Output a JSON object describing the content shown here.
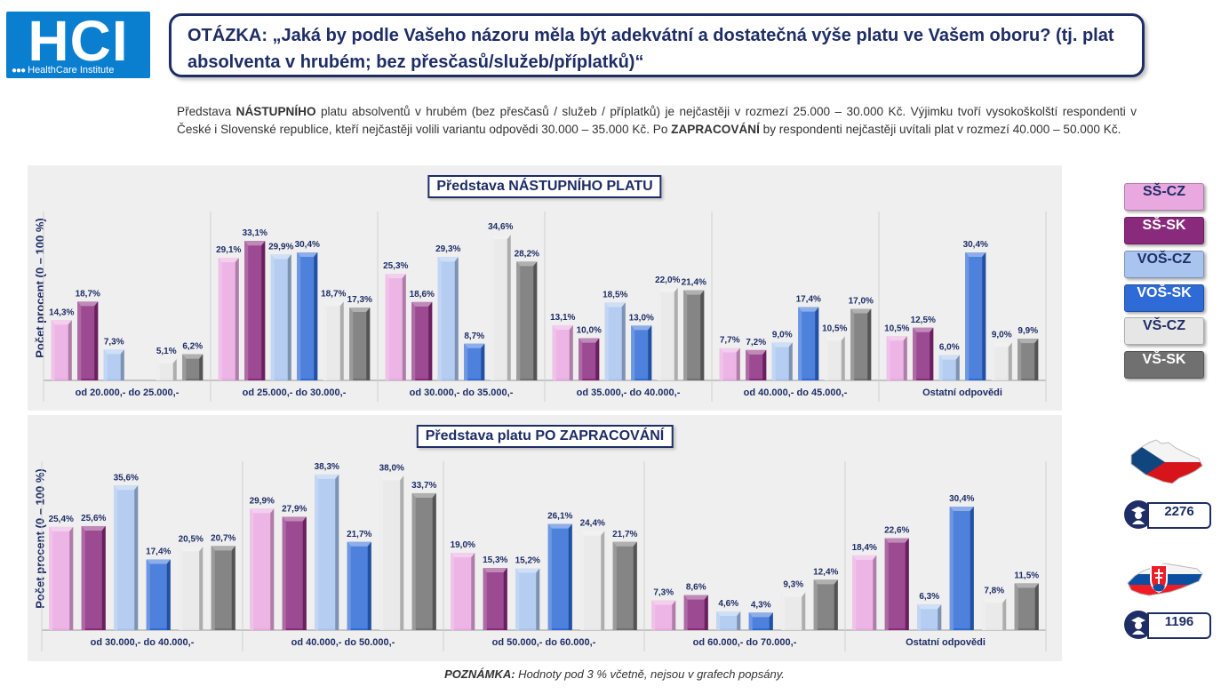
{
  "logo": {
    "main": "HCI",
    "dots": "●●●",
    "sub": "HealthCare Institute"
  },
  "question": "OTÁZKA: „Jaká by podle Vašeho názoru měla být adekvátní a dostatečná výše platu ve Vašem oboru? (tj. plat absolventa v hrubém; bez přesčasů/služeb/příplatků)“",
  "intro": {
    "p1": "Představa ",
    "b1": "NÁSTUPNÍHO",
    "p2": " platu absolventů v hrubém (bez přesčasů / služeb / příplatků) je nejčastěji v rozmezí 25.000 – 30.000 Kč. Výjimku tvoří vysokoškolští respondenti v České i Slovenské republice, kteří nejčastěji volili variantu odpovědi 30.000 – 35.000 Kč. Po ",
    "b2": "ZAPRACOVÁNÍ",
    "p3": " by respondenti nejčastěji uvítali plat v rozmezí 40.000 – 50.000 Kč."
  },
  "legend": [
    {
      "label": "SŠ-CZ",
      "bg": "#e9a8e0",
      "fg": "#1e2d66"
    },
    {
      "label": "SŠ-SK",
      "bg": "#8a2a7d",
      "fg": "#ffffff"
    },
    {
      "label": "VOŠ-CZ",
      "bg": "#a8c4ef",
      "fg": "#1e2d66"
    },
    {
      "label": "VOŠ-SK",
      "bg": "#2f6bd6",
      "fg": "#ffffff"
    },
    {
      "label": "VŠ-CZ",
      "bg": "#e6e6e6",
      "fg": "#1e2d66"
    },
    {
      "label": "VŠ-SK",
      "bg": "#707070",
      "fg": "#ffffff"
    }
  ],
  "counts": {
    "cz": "2276",
    "sk": "1196"
  },
  "note": {
    "bold": "POZNÁMKA:",
    "text": " Hodnoty pod 3 % včetně, nejsou v grafech popsány."
  },
  "chart_data": [
    {
      "type": "bar",
      "title": "Představa NÁSTUPNÍHO PLATU",
      "ylabel": "Počet procent  (0 – 100 %)",
      "categories": [
        "od 20.000,- do 25.000,-",
        "od 25.000,- do 30.000,-",
        "od 30.000,- do 35.000,-",
        "od 35.000,- do 40.000,-",
        "od 40.000,- do 45.000,-",
        "Ostatní odpovědi"
      ],
      "series": [
        {
          "name": "SŠ-CZ",
          "color": "#e9a8e0",
          "values": [
            14.3,
            29.1,
            25.3,
            13.1,
            7.7,
            10.5
          ]
        },
        {
          "name": "SŠ-SK",
          "color": "#8a2a7d",
          "values": [
            18.7,
            33.1,
            18.6,
            10.0,
            7.2,
            12.5
          ]
        },
        {
          "name": "VOŠ-CZ",
          "color": "#a8c4ef",
          "values": [
            7.3,
            29.9,
            29.3,
            18.5,
            9.0,
            6.0
          ]
        },
        {
          "name": "VOŠ-SK",
          "color": "#2f6bd6",
          "values": [
            0,
            30.4,
            8.7,
            13.0,
            17.4,
            30.4
          ]
        },
        {
          "name": "VŠ-CZ",
          "color": "#e6e6e6",
          "values": [
            5.1,
            18.7,
            34.6,
            22.0,
            10.5,
            9.0
          ]
        },
        {
          "name": "VŠ-SK",
          "color": "#707070",
          "values": [
            6.2,
            17.3,
            28.2,
            21.4,
            17.0,
            9.9
          ]
        }
      ],
      "ylim": [
        0,
        38
      ]
    },
    {
      "type": "bar",
      "title": "Představa platu PO ZAPRACOVÁNÍ",
      "ylabel": "Počet procent  (0 – 100 %)",
      "categories": [
        "od 30.000,- do 40.000,-",
        "od 40.000,- do 50.000,-",
        "od 50.000,- do 60.000,-",
        "od 60.000,- do 70.000,-",
        "Ostatní odpovědi"
      ],
      "series": [
        {
          "name": "SŠ-CZ",
          "color": "#e9a8e0",
          "values": [
            25.4,
            29.9,
            19.0,
            7.3,
            18.4
          ]
        },
        {
          "name": "SŠ-SK",
          "color": "#8a2a7d",
          "values": [
            25.6,
            27.9,
            15.3,
            8.6,
            22.6
          ]
        },
        {
          "name": "VOŠ-CZ",
          "color": "#a8c4ef",
          "values": [
            35.6,
            38.3,
            15.2,
            4.6,
            6.3
          ]
        },
        {
          "name": "VOŠ-SK",
          "color": "#2f6bd6",
          "values": [
            17.4,
            21.7,
            26.1,
            4.3,
            30.4
          ]
        },
        {
          "name": "VŠ-CZ",
          "color": "#e6e6e6",
          "values": [
            20.5,
            38.0,
            24.4,
            9.3,
            7.8
          ]
        },
        {
          "name": "VŠ-SK",
          "color": "#707070",
          "values": [
            20.7,
            33.7,
            21.7,
            12.4,
            11.5
          ]
        }
      ],
      "ylim": [
        0,
        42
      ]
    }
  ]
}
